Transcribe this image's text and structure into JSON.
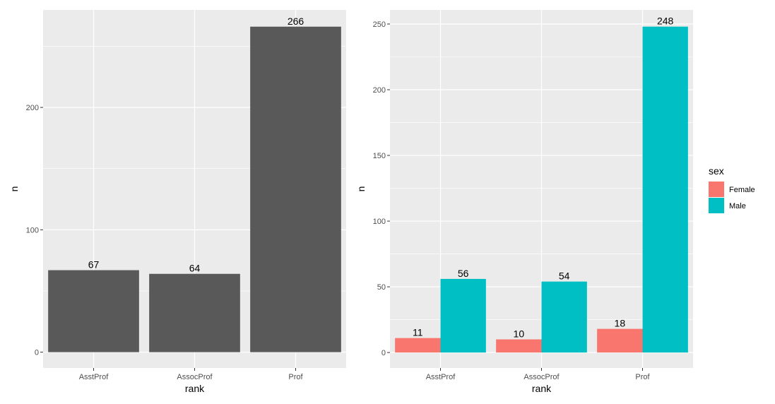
{
  "chart_data": [
    {
      "type": "bar",
      "categories": [
        "AsstProf",
        "AssocProf",
        "Prof"
      ],
      "values": [
        67,
        64,
        266
      ],
      "value_labels": [
        "67",
        "64",
        "266"
      ],
      "xlabel": "rank",
      "ylabel": "n",
      "ylim": [
        0,
        280
      ],
      "yticks": [
        0,
        100,
        200
      ],
      "ytick_labels": [
        "0",
        "100",
        "200"
      ],
      "grid": true,
      "bar_color": "#595959",
      "panel_background": "#ebebeb"
    },
    {
      "type": "bar",
      "categories": [
        "AsstProf",
        "AssocProf",
        "Prof"
      ],
      "series": [
        {
          "name": "Female",
          "values": [
            11,
            10,
            18
          ],
          "value_labels": [
            "11",
            "10",
            "18"
          ],
          "color": "#f8766d"
        },
        {
          "name": "Male",
          "values": [
            56,
            54,
            248
          ],
          "value_labels": [
            "56",
            "54",
            "248"
          ],
          "color": "#00bfc4"
        }
      ],
      "xlabel": "rank",
      "ylabel": "n",
      "ylim": [
        0,
        260
      ],
      "yticks": [
        0,
        50,
        100,
        150,
        200,
        250
      ],
      "ytick_labels": [
        "0",
        "50",
        "100",
        "150",
        "200",
        "250"
      ],
      "grid": true,
      "legend": {
        "title": "sex",
        "position": "right"
      },
      "panel_background": "#ebebeb"
    }
  ]
}
